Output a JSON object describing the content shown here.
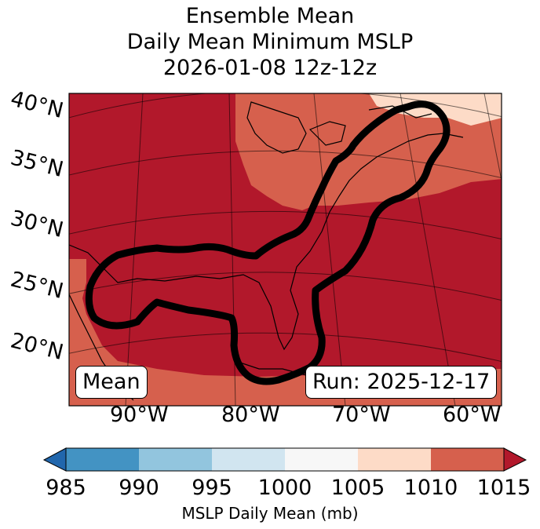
{
  "title": [
    "Ensemble Mean",
    "Daily Mean Minimum MSLP",
    "2026-01-08 12z-12z"
  ],
  "lat_labels": [
    "40°N",
    "35°N",
    "30°N",
    "25°N",
    "20°N"
  ],
  "lon_labels": [
    "90°W",
    "80°W",
    "70°W",
    "60°W"
  ],
  "mean_label": "Mean",
  "run_label": "Run: 2025-12-17",
  "colorbar": {
    "label": "MSLP Daily Mean (mb)",
    "ticks": [
      "985",
      "990",
      "995",
      "1000",
      "1005",
      "1010",
      "1015"
    ],
    "colors": [
      "#2166ac",
      "#4393c3",
      "#92c5de",
      "#d1e5f0",
      "#f7f7f7",
      "#fddbc7",
      "#d6604d",
      "#b2182b"
    ]
  },
  "map_colors": {
    "dark_red": "#b2182b",
    "mid_red": "#d6604d",
    "light": "#fddbc7",
    "contour": "#000000"
  }
}
